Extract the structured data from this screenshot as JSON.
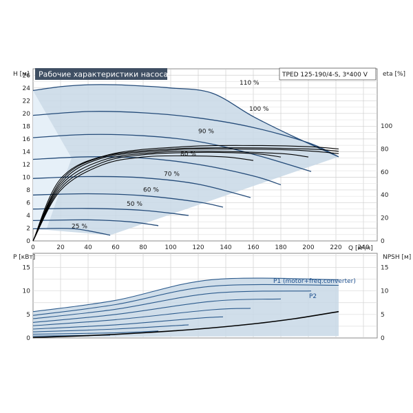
{
  "header": {
    "title": "Рабочие характеристики насоса",
    "model": "TPED 125-190/4-S, 3*400 V"
  },
  "chart_data": [
    {
      "type": "line",
      "title": "Рабочие характеристики насоса",
      "xlabel": "Q [м³/ч]",
      "ylabel_left": "H [м]",
      "ylabel_right": "eta [%]",
      "xlim": [
        0,
        250
      ],
      "ylim": [
        0,
        27
      ],
      "eta_lim": [
        0,
        100
      ],
      "x_ticks": [
        "0",
        "20",
        "40",
        "60",
        "80",
        "100",
        "120",
        "140",
        "160",
        "180",
        "200",
        "220",
        "240"
      ],
      "y_ticks": [
        "0",
        "2",
        "4",
        "6",
        "8",
        "10",
        "12",
        "14",
        "16",
        "18",
        "20",
        "22",
        "24",
        "26"
      ],
      "eta_ticks": [
        "0",
        "20",
        "40",
        "60",
        "80",
        "100"
      ],
      "head_curves": [
        {
          "label": "110 %",
          "label_at": [
            150,
            24.3
          ],
          "points": [
            [
              0,
              23.6
            ],
            [
              20,
              24.2
            ],
            [
              40,
              24.5
            ],
            [
              60,
              24.5
            ],
            [
              80,
              24.3
            ],
            [
              100,
              24.0
            ],
            [
              130,
              23.2
            ],
            [
              160,
              19.5
            ],
            [
              190,
              16.3
            ],
            [
              222,
              13.2
            ]
          ]
        },
        {
          "label": "100 %",
          "label_at": [
            157,
            20.2
          ],
          "points": [
            [
              0,
              19.7
            ],
            [
              40,
              20.3
            ],
            [
              80,
              20.1
            ],
            [
              120,
              19.3
            ],
            [
              160,
              17.8
            ],
            [
              200,
              15.4
            ],
            [
              222,
              13.2
            ]
          ]
        },
        {
          "label": "90 %",
          "label_at": [
            120,
            16.7
          ],
          "points": [
            [
              0,
              16.2
            ],
            [
              40,
              16.7
            ],
            [
              80,
              16.5
            ],
            [
              120,
              15.6
            ],
            [
              160,
              13.6
            ],
            [
              202,
              10.9
            ]
          ]
        },
        {
          "label": "80 %",
          "label_at": [
            107,
            13.1
          ],
          "points": [
            [
              0,
              12.8
            ],
            [
              40,
              13.2
            ],
            [
              80,
              13.0
            ],
            [
              120,
              12.0
            ],
            [
              160,
              10.2
            ],
            [
              180,
              8.8
            ]
          ]
        },
        {
          "label": "70 %",
          "label_at": [
            95,
            10.0
          ],
          "points": [
            [
              0,
              9.8
            ],
            [
              40,
              10.1
            ],
            [
              80,
              9.9
            ],
            [
              120,
              8.9
            ],
            [
              158,
              6.8
            ]
          ]
        },
        {
          "label": "60 %",
          "label_at": [
            80,
            7.5
          ],
          "points": [
            [
              0,
              7.2
            ],
            [
              40,
              7.4
            ],
            [
              80,
              7.1
            ],
            [
              120,
              6.1
            ],
            [
              138,
              5.3
            ]
          ]
        },
        {
          "label": "50 %",
          "label_at": [
            68,
            5.3
          ],
          "points": [
            [
              0,
              5.0
            ],
            [
              40,
              5.1
            ],
            [
              80,
              4.8
            ],
            [
              113,
              4.0
            ]
          ]
        },
        {
          "label": "",
          "label_at": [
            0,
            0
          ],
          "points": [
            [
              0,
              3.2
            ],
            [
              40,
              3.3
            ],
            [
              70,
              3.0
            ],
            [
              91,
              2.4
            ]
          ]
        },
        {
          "label": "25 %",
          "label_at": [
            28,
            1.8
          ],
          "points": [
            [
              0,
              1.9
            ],
            [
              30,
              1.9
            ],
            [
              56,
              0.9
            ]
          ]
        }
      ],
      "eta_curves": [
        {
          "points": [
            [
              0,
              0
            ],
            [
              20,
              44
            ],
            [
              50,
              66
            ],
            [
              80,
              73
            ],
            [
              110,
              74
            ],
            [
              140,
              73
            ],
            [
              160,
              70
            ]
          ]
        },
        {
          "points": [
            [
              0,
              0
            ],
            [
              20,
              46
            ],
            [
              50,
              68
            ],
            [
              80,
              75
            ],
            [
              120,
              77
            ],
            [
              160,
              76
            ],
            [
              180,
              73
            ]
          ]
        },
        {
          "points": [
            [
              0,
              0
            ],
            [
              20,
              48
            ],
            [
              50,
              70
            ],
            [
              90,
              77
            ],
            [
              130,
              78
            ],
            [
              180,
              76
            ],
            [
              200,
              73
            ]
          ]
        },
        {
          "points": [
            [
              0,
              0
            ],
            [
              20,
              50
            ],
            [
              50,
              72
            ],
            [
              100,
              79
            ],
            [
              140,
              80
            ],
            [
              190,
              79
            ],
            [
              222,
              76
            ]
          ]
        },
        {
          "points": [
            [
              0,
              0
            ],
            [
              20,
              52
            ],
            [
              50,
              73
            ],
            [
              100,
              80
            ],
            [
              150,
              81
            ],
            [
              200,
              80
            ],
            [
              222,
              78
            ]
          ]
        },
        {
          "points": [
            [
              0,
              0
            ],
            [
              20,
              54
            ],
            [
              55,
              75
            ],
            [
              110,
              82
            ],
            [
              160,
              83
            ],
            [
              200,
              82
            ],
            [
              222,
              80
            ]
          ]
        }
      ]
    },
    {
      "type": "line",
      "title": "",
      "xlabel": "",
      "ylabel_left": "P [кВт]",
      "ylabel_right": "NPSH [м]",
      "xlim": [
        0,
        250
      ],
      "ylim": [
        0,
        18
      ],
      "y_ticks": [
        "0",
        "5",
        "10",
        "15"
      ],
      "npsh_ticks": [
        "0",
        "5",
        "10",
        "15"
      ],
      "series_labels": {
        "p1": "P1 (motor+freq.converter)",
        "p2": "P2"
      },
      "power_curves": [
        {
          "points": [
            [
              0,
              5.6
            ],
            [
              60,
              8.0
            ],
            [
              130,
              12.4
            ],
            [
              222,
              12.4
            ]
          ]
        },
        {
          "points": [
            [
              0,
              4.8
            ],
            [
              60,
              7.1
            ],
            [
              130,
              11.0
            ],
            [
              222,
              11.2
            ]
          ]
        },
        {
          "points": [
            [
              0,
              4.1
            ],
            [
              60,
              6.1
            ],
            [
              130,
              9.5
            ],
            [
              202,
              10.0
            ]
          ]
        },
        {
          "points": [
            [
              0,
              3.3
            ],
            [
              60,
              5.0
            ],
            [
              130,
              7.8
            ],
            [
              180,
              8.3
            ]
          ]
        },
        {
          "points": [
            [
              0,
              2.6
            ],
            [
              60,
              3.9
            ],
            [
              130,
              6.0
            ],
            [
              158,
              6.3
            ]
          ]
        },
        {
          "points": [
            [
              0,
              1.9
            ],
            [
              60,
              2.8
            ],
            [
              120,
              4.2
            ],
            [
              138,
              4.5
            ]
          ]
        },
        {
          "points": [
            [
              0,
              1.3
            ],
            [
              60,
              1.9
            ],
            [
              113,
              2.8
            ]
          ]
        },
        {
          "points": [
            [
              0,
              0.8
            ],
            [
              60,
              1.1
            ],
            [
              91,
              1.5
            ]
          ]
        },
        {
          "points": [
            [
              0,
              0.4
            ],
            [
              56,
              0.6
            ]
          ]
        }
      ],
      "npsh_curve": {
        "points": [
          [
            0,
            0.1
          ],
          [
            40,
            0.5
          ],
          [
            80,
            1.1
          ],
          [
            120,
            1.9
          ],
          [
            160,
            3.0
          ],
          [
            190,
            4.1
          ],
          [
            222,
            5.6
          ]
        ]
      }
    }
  ]
}
